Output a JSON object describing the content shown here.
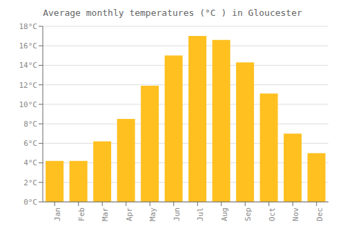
{
  "chart_data": {
    "type": "bar",
    "title": "Average monthly temperatures (°C ) in Gloucester",
    "categories": [
      "Jan",
      "Feb",
      "Mar",
      "Apr",
      "May",
      "Jun",
      "Jul",
      "Aug",
      "Sep",
      "Oct",
      "Nov",
      "Dec"
    ],
    "values": [
      4.2,
      4.2,
      6.2,
      8.5,
      11.9,
      15.0,
      17.0,
      16.6,
      14.3,
      11.1,
      7.0,
      5.0
    ],
    "color": "#FFC020",
    "ylim": [
      0,
      18
    ],
    "yticks": [
      {
        "value": 0,
        "label": "0°C"
      },
      {
        "value": 2,
        "label": "2°C"
      },
      {
        "value": 4,
        "label": "4°C"
      },
      {
        "value": 6,
        "label": "6°C"
      },
      {
        "value": 8,
        "label": "8°C"
      },
      {
        "value": 10,
        "label": "10°C"
      },
      {
        "value": 12,
        "label": "12°C"
      },
      {
        "value": 14,
        "label": "14°C"
      },
      {
        "value": 16,
        "label": "16°C"
      },
      {
        "value": 18,
        "label": "18°C"
      }
    ],
    "grid": true
  }
}
